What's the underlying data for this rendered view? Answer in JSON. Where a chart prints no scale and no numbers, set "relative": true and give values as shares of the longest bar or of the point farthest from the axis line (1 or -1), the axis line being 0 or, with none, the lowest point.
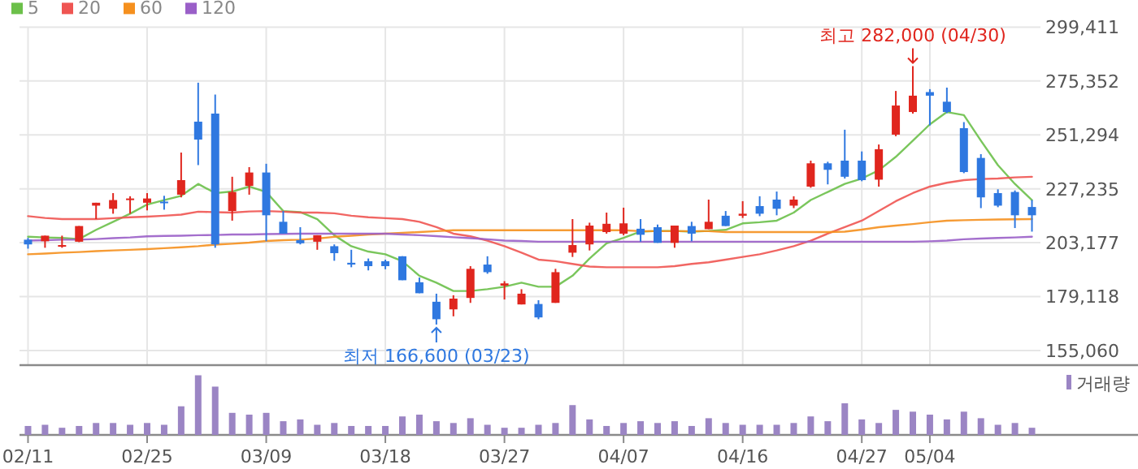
{
  "chart_data": [
    {
      "type": "candlestick",
      "categories": [
        null,
        null,
        null,
        null,
        null,
        null,
        null,
        null,
        null,
        null,
        null,
        null,
        null,
        null,
        null,
        null,
        null,
        null,
        null,
        null,
        null,
        null,
        null,
        null,
        null,
        null,
        null,
        null,
        null,
        null,
        null,
        null,
        null,
        null,
        null,
        null,
        null,
        null,
        null,
        null,
        null,
        null,
        null,
        null,
        null,
        null,
        null,
        null,
        null,
        null,
        null,
        null,
        null,
        null,
        null,
        null,
        null,
        null,
        null,
        null
      ],
      "ohlc": [
        [
          204500,
          205300,
          200500,
          202400
        ],
        [
          203800,
          206300,
          200900,
          206300
        ],
        [
          201600,
          206300,
          200900,
          202100
        ],
        [
          203600,
          210600,
          203400,
          210600
        ],
        [
          219700,
          221000,
          213700,
          221000
        ],
        [
          218300,
          225300,
          216100,
          222200
        ],
        [
          222400,
          223900,
          216100,
          222900
        ],
        [
          221000,
          225300,
          217600,
          222900
        ],
        [
          221500,
          224100,
          217900,
          221000
        ],
        [
          224600,
          243400,
          223400,
          231100
        ],
        [
          257200,
          274600,
          237800,
          249200
        ],
        [
          260800,
          269300,
          200900,
          202400
        ],
        [
          217300,
          232600,
          213000,
          225800
        ],
        [
          228500,
          236900,
          224600,
          234500
        ],
        [
          234500,
          238400,
          203800,
          215400
        ],
        [
          212500,
          217300,
          207200,
          207200
        ],
        [
          204300,
          210100,
          202400,
          202900
        ],
        [
          203600,
          206500,
          200000,
          206500
        ],
        [
          201600,
          202400,
          195100,
          198500
        ],
        [
          194200,
          200000,
          192200,
          193400
        ],
        [
          194900,
          196100,
          190800,
          192700
        ],
        [
          194900,
          195600,
          191300,
          192700
        ],
        [
          197100,
          197100,
          186400,
          186400
        ],
        [
          185500,
          187600,
          180600,
          180600
        ],
        [
          176800,
          180400,
          166600,
          169000
        ],
        [
          173400,
          179700,
          170300,
          178200
        ],
        [
          178500,
          192700,
          176300,
          191500
        ],
        [
          193400,
          197100,
          189300,
          190000
        ],
        [
          184000,
          186000,
          177800,
          185000
        ],
        [
          175600,
          182400,
          175600,
          180400
        ],
        [
          175800,
          177500,
          169000,
          169800
        ],
        [
          176300,
          191500,
          176300,
          190000
        ],
        [
          198700,
          213700,
          196800,
          202100
        ],
        [
          202400,
          212100,
          199700,
          210800
        ],
        [
          207900,
          216600,
          207200,
          211600
        ],
        [
          207200,
          218800,
          206500,
          211800
        ],
        [
          209400,
          213700,
          203600,
          206700
        ],
        [
          210100,
          211300,
          203100,
          203100
        ],
        [
          203100,
          210800,
          200900,
          210800
        ],
        [
          210600,
          212500,
          203800,
          207200
        ],
        [
          209200,
          222400,
          209200,
          212500
        ],
        [
          215200,
          217300,
          210600,
          210600
        ],
        [
          215200,
          221700,
          214200,
          216100
        ],
        [
          219500,
          223900,
          215000,
          216100
        ],
        [
          222400,
          226000,
          215400,
          218300
        ],
        [
          219700,
          223900,
          218600,
          222400
        ],
        [
          228200,
          239800,
          227700,
          238600
        ],
        [
          238600,
          239300,
          229200,
          235700
        ],
        [
          239800,
          253600,
          231800,
          232600
        ],
        [
          239800,
          243900,
          230600,
          231100
        ],
        [
          231300,
          247000,
          228200,
          244900
        ],
        [
          251400,
          270900,
          250700,
          264400
        ],
        [
          261500,
          282000,
          260800,
          268800
        ],
        [
          270400,
          271700,
          255500,
          268800
        ],
        [
          266100,
          272400,
          261000,
          261500
        ],
        [
          254300,
          257000,
          234200,
          234700
        ],
        [
          241000,
          242700,
          218600,
          223400
        ],
        [
          225300,
          227000,
          219000,
          219700
        ],
        [
          225800,
          226500,
          209700,
          215400
        ],
        [
          219100,
          222200,
          208100,
          215400
        ]
      ],
      "series": [
        {
          "name": "5",
          "type": "line",
          "color": "#6cc04a",
          "values": [
            205800,
            205500,
            205300,
            204800,
            208900,
            212500,
            216100,
            220200,
            222200,
            224100,
            229400,
            225300,
            226000,
            228200,
            225800,
            217300,
            216800,
            213700,
            206500,
            201600,
            199200,
            198000,
            194900,
            188400,
            185300,
            181600,
            181600,
            182400,
            183500,
            185300,
            183500,
            183500,
            188400,
            196100,
            202900,
            205300,
            208100,
            208400,
            208400,
            208100,
            208400,
            208900,
            211800,
            212300,
            213000,
            216600,
            222200,
            225800,
            229400,
            231800,
            235500,
            241500,
            248700,
            256000,
            261500,
            260100,
            248700,
            237800,
            229400,
            222200
          ]
        },
        {
          "name": "20",
          "type": "line",
          "color": "#ef5552",
          "values": [
            215000,
            214200,
            213700,
            213700,
            213700,
            214100,
            214500,
            214800,
            215200,
            215700,
            217000,
            216800,
            216600,
            217100,
            217300,
            217000,
            216600,
            216600,
            216300,
            215200,
            214500,
            214100,
            213700,
            212500,
            210100,
            207200,
            206000,
            204100,
            201600,
            198700,
            195600,
            194900,
            193700,
            192500,
            192200,
            192200,
            192200,
            192200,
            192700,
            193700,
            194400,
            195600,
            196800,
            198000,
            199700,
            201600,
            204100,
            207200,
            210100,
            213000,
            217300,
            221700,
            225300,
            228200,
            229900,
            231100,
            231600,
            231800,
            232300,
            232600
          ]
        },
        {
          "name": "60",
          "type": "line",
          "color": "#f5901e",
          "values": [
            198000,
            198300,
            198700,
            199000,
            199400,
            199700,
            200000,
            200300,
            200700,
            201100,
            201600,
            202300,
            202700,
            203200,
            203900,
            204300,
            204500,
            205000,
            205800,
            206300,
            206800,
            207200,
            207600,
            207900,
            208300,
            208700,
            208700,
            208700,
            208700,
            208700,
            208700,
            208700,
            208700,
            208700,
            208700,
            208700,
            208300,
            208300,
            208300,
            208300,
            208300,
            207900,
            207900,
            207900,
            207900,
            207900,
            207900,
            207900,
            208100,
            209000,
            210100,
            210800,
            211500,
            212300,
            213000,
            213200,
            213400,
            213500,
            213600,
            213700
          ]
        },
        {
          "name": "120",
          "type": "line",
          "color": "#9a5fc8",
          "values": [
            204100,
            204300,
            204500,
            204500,
            204800,
            205200,
            205500,
            206000,
            206200,
            206300,
            206500,
            206600,
            206800,
            206800,
            207000,
            207100,
            207200,
            207200,
            207200,
            207200,
            207200,
            207200,
            206800,
            206500,
            206100,
            205600,
            205200,
            204700,
            204100,
            203900,
            203600,
            203600,
            203600,
            203600,
            203600,
            203600,
            203600,
            203600,
            203600,
            203600,
            203600,
            203600,
            203600,
            203600,
            203600,
            203600,
            203600,
            203600,
            203600,
            203600,
            203600,
            203600,
            203600,
            203800,
            204100,
            204700,
            205000,
            205300,
            205500,
            205800
          ]
        }
      ],
      "ylim": [
        148500,
        299411
      ],
      "yticks": [
        {
          "value": 155060,
          "label": "155,060"
        },
        {
          "value": 179118,
          "label": "179,118"
        },
        {
          "value": 203177,
          "label": "203,177"
        },
        {
          "value": 227235,
          "label": "227,235"
        },
        {
          "value": 251294,
          "label": "251,294"
        },
        {
          "value": 275352,
          "label": "275,352"
        },
        {
          "value": 299411,
          "label": "299,411"
        }
      ],
      "grid": true,
      "legend": "top left",
      "tick_labels": "y",
      "annotations": [
        {
          "text": "최고 282,000 (04/30)",
          "y": 282000
        },
        {
          "text": "최저 166,600 (03/23)",
          "y": 166600
        }
      ]
    },
    {
      "type": "bar",
      "categories": [
        "02/11",
        null,
        null,
        null,
        null,
        null,
        null,
        "02/25",
        null,
        null,
        null,
        null,
        null,
        null,
        "03/09",
        null,
        null,
        null,
        null,
        null,
        null,
        "03/18",
        null,
        null,
        null,
        null,
        null,
        null,
        "03/27",
        null,
        null,
        null,
        null,
        null,
        null,
        "04/07",
        null,
        null,
        null,
        null,
        null,
        null,
        "04/16",
        null,
        null,
        null,
        null,
        null,
        null,
        "04/27",
        null,
        null,
        null,
        "05/04",
        null,
        null,
        null,
        null,
        null,
        null
      ],
      "relative": true,
      "series": [
        {
          "name": "거래량",
          "color": "#9b85c4",
          "values": [
            0.15,
            0.17,
            0.12,
            0.15,
            0.2,
            0.2,
            0.17,
            0.2,
            0.17,
            0.48,
            1,
            0.81,
            0.37,
            0.34,
            0.37,
            0.23,
            0.26,
            0.17,
            0.2,
            0.15,
            0.15,
            0.15,
            0.31,
            0.34,
            0.23,
            0.2,
            0.28,
            0.17,
            0.12,
            0.12,
            0.17,
            0.2,
            0.5,
            0.26,
            0.15,
            0.2,
            0.23,
            0.2,
            0.23,
            0.15,
            0.28,
            0.2,
            0.17,
            0.17,
            0.17,
            0.2,
            0.31,
            0.23,
            0.53,
            0.26,
            0.2,
            0.42,
            0.39,
            0.34,
            0.26,
            0.39,
            0.28,
            0.17,
            0.2,
            0.12
          ]
        }
      ],
      "legend": "top right",
      "tick_labels": "x"
    }
  ]
}
